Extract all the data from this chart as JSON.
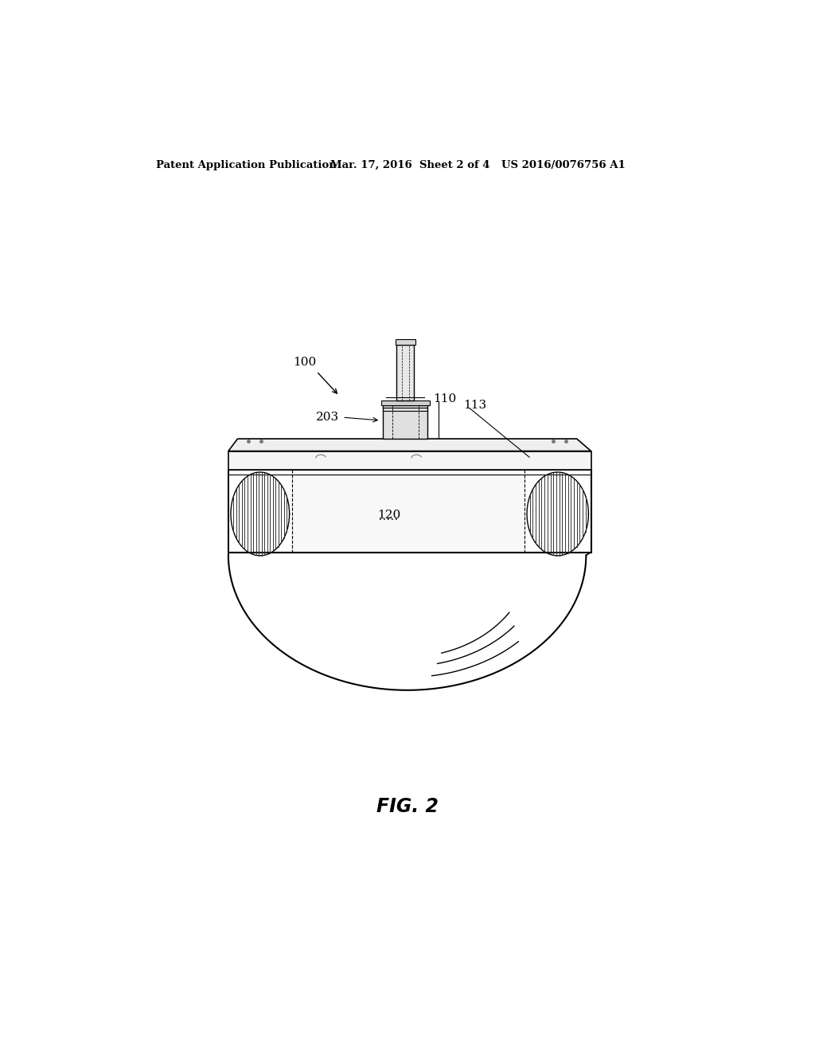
{
  "background_color": "#ffffff",
  "header_left": "Patent Application Publication",
  "header_center": "Mar. 17, 2016  Sheet 2 of 4",
  "header_right": "US 2016/0076756 A1",
  "fig_label": "FIG. 2",
  "label_100": "100",
  "label_203": "203",
  "label_110": "110",
  "label_113": "113",
  "label_120": "120"
}
